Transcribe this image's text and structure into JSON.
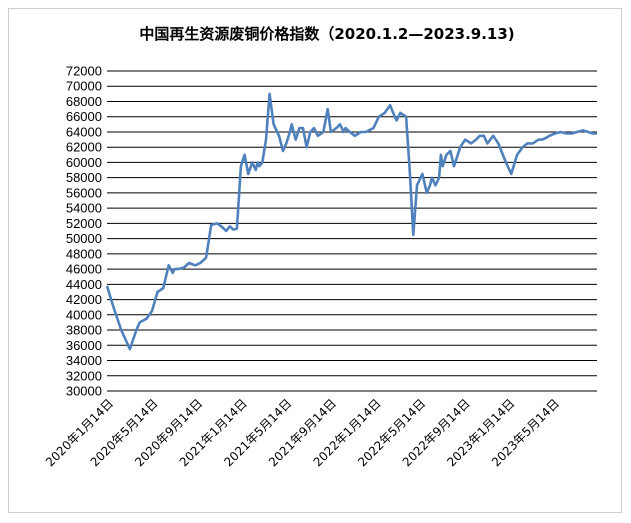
{
  "chart_data": {
    "type": "line",
    "title": "中国再生资源废铜价格指数（2020.1.2—2023.9.13)",
    "xlabel": "",
    "ylabel": "",
    "ylim": [
      30000,
      72000
    ],
    "y_step": 2000,
    "grid": "horizontal",
    "legend": "none",
    "line_color": "#4f81bd",
    "x_tick_labels": [
      "2020年1月14日",
      "2020年5月14日",
      "2020年9月14日",
      "2021年1月14日",
      "2021年5月14日",
      "2021年9月14日",
      "2022年1月14日",
      "2022年5月14日",
      "2022年9月14日",
      "2023年1月14日",
      "2023年5月14日"
    ],
    "series": [
      {
        "x": [
          "2020-01-02",
          "2020-01-20",
          "2020-02-10",
          "2020-03-05",
          "2020-03-23",
          "2020-04-01",
          "2020-04-20",
          "2020-05-05",
          "2020-05-20",
          "2020-06-05",
          "2020-06-20",
          "2020-07-01",
          "2020-07-06",
          "2020-07-15",
          "2020-08-01",
          "2020-08-15",
          "2020-09-01",
          "2020-09-15",
          "2020-10-01",
          "2020-10-15",
          "2020-11-01",
          "2020-11-15",
          "2020-11-25",
          "2020-12-05",
          "2020-12-15",
          "2020-12-25",
          "2021-01-05",
          "2021-01-15",
          "2021-01-25",
          "2021-02-05",
          "2021-02-15",
          "2021-02-20",
          "2021-02-25",
          "2021-03-05",
          "2021-03-15",
          "2021-03-25",
          "2021-04-05",
          "2021-04-20",
          "2021-05-01",
          "2021-05-10",
          "2021-05-20",
          "2021-05-25",
          "2021-06-05",
          "2021-06-15",
          "2021-06-25",
          "2021-07-05",
          "2021-07-15",
          "2021-07-25",
          "2021-08-05",
          "2021-08-20",
          "2021-09-01",
          "2021-09-10",
          "2021-09-25",
          "2021-10-05",
          "2021-10-15",
          "2021-10-20",
          "2021-11-01",
          "2021-11-15",
          "2021-12-01",
          "2021-12-15",
          "2022-01-05",
          "2022-01-20",
          "2022-02-05",
          "2022-02-20",
          "2022-03-05",
          "2022-03-10",
          "2022-03-20",
          "2022-04-05",
          "2022-04-15",
          "2022-04-25",
          "2022-05-05",
          "2022-05-20",
          "2022-06-01",
          "2022-06-10",
          "2022-06-15",
          "2022-06-25",
          "2022-07-05",
          "2022-07-10",
          "2022-07-15",
          "2022-07-25",
          "2022-08-05",
          "2022-08-15",
          "2022-09-01",
          "2022-09-15",
          "2022-10-01",
          "2022-10-15",
          "2022-10-25",
          "2022-11-05",
          "2022-11-15",
          "2022-12-01",
          "2022-12-15",
          "2023-01-05",
          "2023-01-20",
          "2023-02-05",
          "2023-02-20",
          "2023-03-05",
          "2023-03-20",
          "2023-04-05",
          "2023-04-15",
          "2023-04-25",
          "2023-05-05",
          "2023-05-20",
          "2023-06-05",
          "2023-06-20",
          "2023-07-05",
          "2023-07-20",
          "2023-08-05",
          "2023-08-20",
          "2023-09-01",
          "2023-09-13"
        ],
        "y": [
          43800,
          41000,
          38000,
          35500,
          38000,
          39000,
          39500,
          40500,
          43000,
          43500,
          46500,
          45500,
          46000,
          46000,
          46200,
          46800,
          46500,
          46800,
          47500,
          51800,
          52000,
          51500,
          51000,
          51600,
          51200,
          51300,
          59500,
          61000,
          58500,
          60000,
          59000,
          60000,
          59500,
          60000,
          63000,
          69000,
          65000,
          63500,
          61500,
          62500,
          64000,
          65000,
          63000,
          64500,
          64500,
          62000,
          64000,
          64500,
          63500,
          64000,
          67000,
          64000,
          64500,
          65000,
          64000,
          64500,
          64000,
          63500,
          64000,
          64000,
          64500,
          66000,
          66500,
          67500,
          66000,
          65500,
          66500,
          66000,
          59000,
          50500,
          57000,
          58500,
          56000,
          57000,
          58000,
          57000,
          58000,
          61000,
          59500,
          61000,
          61500,
          59500,
          62000,
          63000,
          62500,
          63000,
          63500,
          63500,
          62500,
          63500,
          62500,
          60000,
          58500,
          61000,
          62000,
          62500,
          62500,
          63000,
          63000,
          63200,
          63500,
          63800,
          64000,
          63800,
          63800,
          64000,
          64200,
          64000,
          63800,
          63800
        ]
      }
    ]
  }
}
